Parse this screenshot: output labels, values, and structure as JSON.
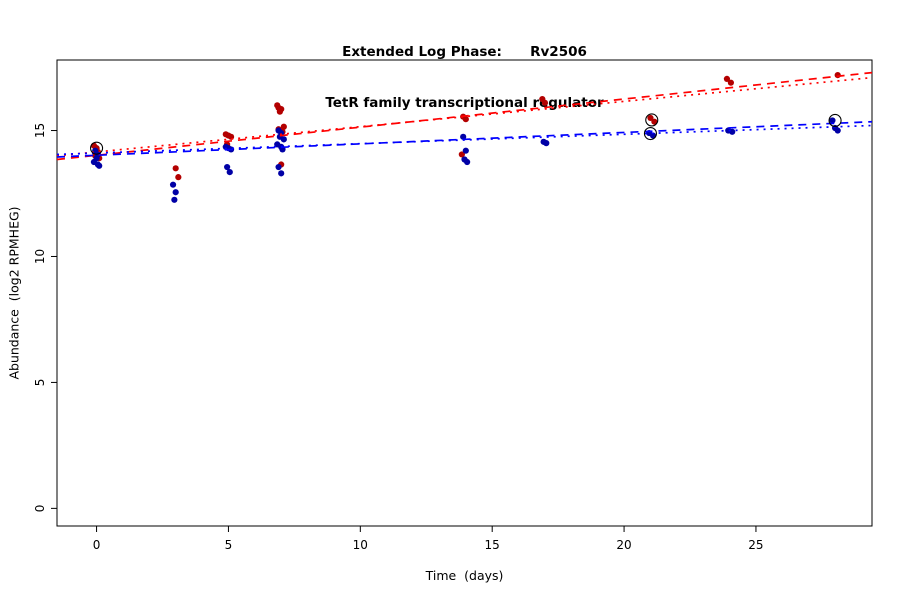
{
  "title": {
    "line1": "Extended Log Phase:      Rv2506",
    "line2": "TetR family transcriptional regulator"
  },
  "chart_data": {
    "type": "scatter",
    "title": "Extended Log Phase:      Rv2506",
    "subtitle": "TetR family transcriptional regulator",
    "xlabel": "Time  (days)",
    "ylabel": "Abundance  (log2 RPMHEG)",
    "xlim": [
      -1.5,
      29.4
    ],
    "ylim": [
      -0.7,
      17.8
    ],
    "x_ticks": [
      0,
      5,
      10,
      15,
      20,
      25
    ],
    "y_ticks": [
      0,
      5,
      10,
      15
    ],
    "grid": false,
    "legend": "none",
    "series": [
      {
        "name": "condition-red",
        "color": "#b30000",
        "points": [
          [
            -0.1,
            14.4
          ],
          [
            0.0,
            14.3
          ],
          [
            0.05,
            14.15
          ],
          [
            -0.05,
            14.0
          ],
          [
            0.1,
            13.9
          ],
          [
            3.0,
            13.5
          ],
          [
            3.1,
            13.15
          ],
          [
            4.9,
            14.85
          ],
          [
            5.0,
            14.8
          ],
          [
            5.1,
            14.75
          ],
          [
            4.95,
            14.45
          ],
          [
            6.85,
            16.0
          ],
          [
            6.9,
            15.9
          ],
          [
            7.0,
            15.85
          ],
          [
            6.95,
            15.75
          ],
          [
            7.1,
            15.15
          ],
          [
            6.9,
            15.05
          ],
          [
            7.05,
            14.95
          ],
          [
            7.0,
            13.65
          ],
          [
            13.9,
            15.55
          ],
          [
            14.0,
            15.45
          ],
          [
            13.85,
            14.05
          ],
          [
            16.9,
            16.25
          ],
          [
            17.0,
            16.1
          ],
          [
            21.0,
            15.5
          ],
          [
            21.15,
            15.35
          ],
          [
            23.9,
            17.05
          ],
          [
            24.05,
            16.9
          ],
          [
            28.1,
            17.2
          ]
        ]
      },
      {
        "name": "condition-blue",
        "color": "#0000a6",
        "points": [
          [
            -0.05,
            14.2
          ],
          [
            0.05,
            14.05
          ],
          [
            0.0,
            13.9
          ],
          [
            -0.1,
            13.75
          ],
          [
            0.05,
            13.65
          ],
          [
            0.1,
            13.6
          ],
          [
            2.9,
            12.85
          ],
          [
            3.0,
            12.55
          ],
          [
            2.95,
            12.25
          ],
          [
            4.9,
            14.35
          ],
          [
            5.0,
            14.3
          ],
          [
            5.1,
            14.25
          ],
          [
            4.95,
            13.55
          ],
          [
            5.05,
            13.35
          ],
          [
            6.9,
            15.0
          ],
          [
            7.0,
            14.9
          ],
          [
            6.95,
            14.75
          ],
          [
            7.1,
            14.65
          ],
          [
            6.85,
            14.45
          ],
          [
            7.0,
            14.35
          ],
          [
            7.05,
            14.25
          ],
          [
            6.9,
            13.55
          ],
          [
            7.0,
            13.3
          ],
          [
            13.9,
            14.75
          ],
          [
            14.0,
            14.2
          ],
          [
            13.95,
            13.85
          ],
          [
            14.05,
            13.75
          ],
          [
            16.95,
            14.55
          ],
          [
            17.05,
            14.5
          ],
          [
            20.95,
            14.9
          ],
          [
            21.1,
            14.8
          ],
          [
            23.95,
            15.0
          ],
          [
            24.1,
            14.95
          ],
          [
            27.9,
            15.4
          ],
          [
            28.0,
            15.1
          ],
          [
            28.1,
            15.0
          ]
        ]
      }
    ],
    "highlighted_points": [
      [
        0.0,
        14.3
      ],
      [
        21.05,
        15.42
      ],
      [
        21.0,
        14.88
      ],
      [
        28.0,
        15.4
      ]
    ],
    "trend_lines": [
      {
        "name": "red-fit-dashed",
        "color": "#ff0000",
        "style": "dashed",
        "x1": -1.5,
        "y1": 13.85,
        "x2": 29.4,
        "y2": 17.3
      },
      {
        "name": "red-fit-dotted",
        "color": "#ff0000",
        "style": "dotted",
        "x1": -1.5,
        "y1": 14.0,
        "x2": 29.4,
        "y2": 17.1
      },
      {
        "name": "blue-fit-dashed",
        "color": "#0000ff",
        "style": "dashed",
        "x1": -1.5,
        "y1": 13.95,
        "x2": 29.4,
        "y2": 15.35
      },
      {
        "name": "blue-fit-dotted",
        "color": "#0000ff",
        "style": "dotted",
        "x1": -1.5,
        "y1": 14.05,
        "x2": 29.4,
        "y2": 15.2
      }
    ],
    "colors": {
      "point_red": "#b30000",
      "point_blue": "#0000a6",
      "line_red": "#ff0000",
      "line_blue": "#0000ff",
      "axis": "#000000",
      "highlight_ring": "#000000"
    }
  }
}
